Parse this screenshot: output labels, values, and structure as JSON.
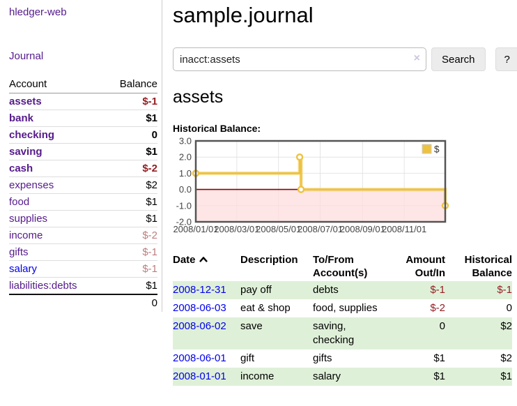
{
  "app": {
    "brand": "hledger-web",
    "nav": {
      "journal": "Journal"
    }
  },
  "colors": {
    "visited_link_purple": "#551a8b",
    "unvisited_link_blue": "#0000ee",
    "negative_strong_red": "#941f24",
    "negative_soft_red": "#bd7d7d",
    "row_highlight_green": "#dff0d8",
    "chart_series_yellow": "#edc240",
    "chart_zero_line_red": "#8b0000",
    "chart_negative_fill_pink": "#ffdddd"
  },
  "sidebar": {
    "accounts": {
      "headers": {
        "account": "Account",
        "balance": "Balance"
      },
      "rows": [
        {
          "name": "assets",
          "balance": "$-1"
        },
        {
          "name": "bank",
          "balance": "$1"
        },
        {
          "name": "checking",
          "balance": "0"
        },
        {
          "name": "saving",
          "balance": "$1"
        },
        {
          "name": "cash",
          "balance": "$-2"
        },
        {
          "name": "expenses",
          "balance": "$2"
        },
        {
          "name": "food",
          "balance": "$1"
        },
        {
          "name": "supplies",
          "balance": "$1"
        },
        {
          "name": "income",
          "balance": "$-2"
        },
        {
          "name": "gifts",
          "balance": "$-1"
        },
        {
          "name": "salary",
          "balance": "$-1"
        },
        {
          "name": "liabilities:debts",
          "balance": "$1"
        }
      ],
      "total": "0"
    }
  },
  "main": {
    "title": "sample.journal",
    "search": {
      "value": "inacct:assets",
      "clear_icon": "×",
      "search_button": "Search",
      "help_button": "?"
    },
    "account_heading": "assets"
  },
  "chart_data": {
    "type": "line",
    "title": "Historical Balance:",
    "style": "step-with-markers",
    "x_range": [
      "2008-01-01",
      "2008-12-31"
    ],
    "x_ticks": [
      "2008/01/01",
      "2008/03/01",
      "2008/05/01",
      "2008/07/01",
      "2008/09/01",
      "2008/11/01"
    ],
    "y_ticks": [
      3,
      2,
      1,
      0,
      -1,
      -2
    ],
    "ylim": [
      -2,
      3
    ],
    "grid": true,
    "legend": {
      "position": "top-right",
      "label": "$"
    },
    "series": [
      {
        "name": "$",
        "color": "#edc240",
        "points": [
          {
            "date": "2008-01-01",
            "value": 1
          },
          {
            "date": "2008-06-01",
            "value": 2
          },
          {
            "date": "2008-06-03",
            "value": 0
          },
          {
            "date": "2008-12-31",
            "value": -1
          }
        ]
      }
    ],
    "zero_line_color": "#8b0000",
    "negative_region_fill": "#ffdddd"
  },
  "register": {
    "headers": {
      "date": "Date",
      "description": "Description",
      "accounts": "To/From Account(s)",
      "amount": "Amount Out/In",
      "balance": "Historical Balance"
    },
    "rows": [
      {
        "date": "2008-12-31",
        "description": "pay off",
        "accounts": "debts",
        "amount": "$-1",
        "balance": "$-1"
      },
      {
        "date": "2008-06-03",
        "description": "eat & shop",
        "accounts": "food, supplies",
        "amount": "$-2",
        "balance": "0"
      },
      {
        "date": "2008-06-02",
        "description": "save",
        "accounts": "saving, checking",
        "amount": "0",
        "balance": "$2"
      },
      {
        "date": "2008-06-01",
        "description": "gift",
        "accounts": "gifts",
        "amount": "$1",
        "balance": "$2"
      },
      {
        "date": "2008-01-01",
        "description": "income",
        "accounts": "salary",
        "amount": "$1",
        "balance": "$1"
      }
    ]
  }
}
